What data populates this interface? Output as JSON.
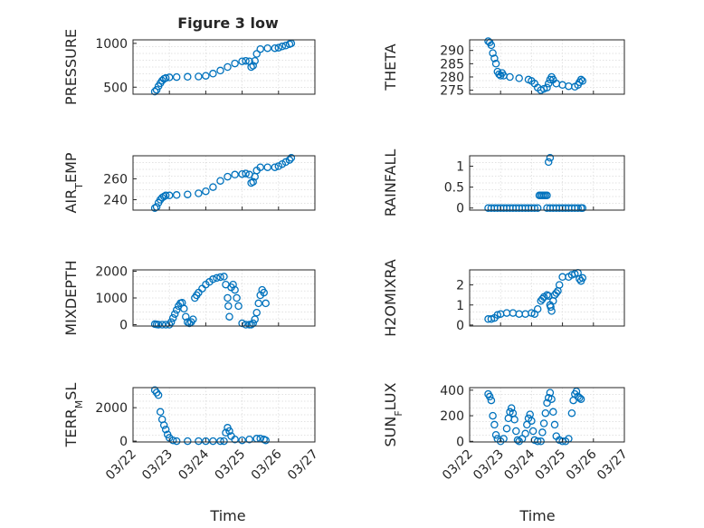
{
  "chart_data": [
    {
      "type": "scatter",
      "title": "Figure 3 low",
      "ylabel": "PRESSURE",
      "ylim": [
        420,
        1040
      ],
      "yticks": [
        {
          "v": 500,
          "t": "500"
        },
        {
          "v": 1000,
          "t": "1000"
        }
      ],
      "xlim": [
        0,
        5
      ],
      "points": [
        [
          0.6,
          450
        ],
        [
          0.65,
          470
        ],
        [
          0.7,
          510
        ],
        [
          0.75,
          545
        ],
        [
          0.8,
          575
        ],
        [
          0.85,
          595
        ],
        [
          0.9,
          605
        ],
        [
          1.0,
          612
        ],
        [
          1.2,
          615
        ],
        [
          1.5,
          618
        ],
        [
          1.8,
          622
        ],
        [
          2.0,
          630
        ],
        [
          2.2,
          655
        ],
        [
          2.4,
          690
        ],
        [
          2.6,
          730
        ],
        [
          2.8,
          770
        ],
        [
          3.0,
          795
        ],
        [
          3.1,
          800
        ],
        [
          3.2,
          795
        ],
        [
          3.25,
          730
        ],
        [
          3.3,
          745
        ],
        [
          3.35,
          800
        ],
        [
          3.4,
          880
        ],
        [
          3.5,
          935
        ],
        [
          3.7,
          945
        ],
        [
          3.9,
          945
        ],
        [
          4.0,
          950
        ],
        [
          4.1,
          965
        ],
        [
          4.2,
          975
        ],
        [
          4.3,
          990
        ],
        [
          4.35,
          1000
        ]
      ]
    },
    {
      "type": "scatter",
      "title": "",
      "ylabel": "THETA",
      "ylim": [
        273.5,
        294
      ],
      "yticks": [
        {
          "v": 275,
          "t": "275"
        },
        {
          "v": 280,
          "t": "280"
        },
        {
          "v": 285,
          "t": "285"
        },
        {
          "v": 290,
          "t": "290"
        }
      ],
      "xlim": [
        0,
        5
      ],
      "points": [
        [
          0.6,
          293.5
        ],
        [
          0.65,
          293
        ],
        [
          0.7,
          292
        ],
        [
          0.75,
          289
        ],
        [
          0.8,
          287
        ],
        [
          0.85,
          285
        ],
        [
          0.9,
          282
        ],
        [
          0.95,
          281
        ],
        [
          1.0,
          280.5
        ],
        [
          1.05,
          281.5
        ],
        [
          1.1,
          280.5
        ],
        [
          1.3,
          280
        ],
        [
          1.6,
          279.5
        ],
        [
          1.9,
          279
        ],
        [
          2.0,
          278.5
        ],
        [
          2.1,
          277.5
        ],
        [
          2.2,
          276
        ],
        [
          2.3,
          275
        ],
        [
          2.4,
          275.5
        ],
        [
          2.5,
          276
        ],
        [
          2.55,
          277.5
        ],
        [
          2.6,
          279
        ],
        [
          2.65,
          280
        ],
        [
          2.7,
          279
        ],
        [
          2.8,
          277.5
        ],
        [
          3.0,
          277
        ],
        [
          3.2,
          276.5
        ],
        [
          3.4,
          276.3
        ],
        [
          3.5,
          277
        ],
        [
          3.55,
          278
        ],
        [
          3.6,
          279
        ],
        [
          3.65,
          278.5
        ]
      ]
    },
    {
      "type": "scatter",
      "title": "",
      "ylabel": "AIR_TEMP",
      "ylim": [
        230,
        282
      ],
      "yticks": [
        {
          "v": 240,
          "t": "240"
        },
        {
          "v": 260,
          "t": "260"
        }
      ],
      "xlim": [
        0,
        5
      ],
      "points": [
        [
          0.6,
          232
        ],
        [
          0.65,
          233
        ],
        [
          0.7,
          237
        ],
        [
          0.75,
          240
        ],
        [
          0.8,
          242
        ],
        [
          0.85,
          243
        ],
        [
          0.9,
          244
        ],
        [
          1.0,
          244
        ],
        [
          1.2,
          244.5
        ],
        [
          1.5,
          245
        ],
        [
          1.8,
          246
        ],
        [
          2.0,
          248
        ],
        [
          2.2,
          252
        ],
        [
          2.4,
          258
        ],
        [
          2.6,
          262
        ],
        [
          2.8,
          264
        ],
        [
          3.0,
          264.5
        ],
        [
          3.1,
          265
        ],
        [
          3.2,
          264
        ],
        [
          3.25,
          256
        ],
        [
          3.3,
          257
        ],
        [
          3.35,
          262
        ],
        [
          3.4,
          268
        ],
        [
          3.5,
          271
        ],
        [
          3.7,
          271
        ],
        [
          3.9,
          271
        ],
        [
          4.0,
          272
        ],
        [
          4.1,
          274
        ],
        [
          4.2,
          276
        ],
        [
          4.3,
          278
        ],
        [
          4.35,
          280
        ]
      ]
    },
    {
      "type": "scatter",
      "title": "",
      "ylabel": "RAINFALL",
      "ylim": [
        -0.05,
        1.25
      ],
      "yticks": [
        {
          "v": 0,
          "t": "0"
        },
        {
          "v": 0.5,
          "t": "0.5"
        },
        {
          "v": 1,
          "t": "1"
        }
      ],
      "xlim": [
        0,
        5
      ],
      "points": [
        [
          0.6,
          0
        ],
        [
          0.7,
          0
        ],
        [
          0.8,
          0
        ],
        [
          0.9,
          0
        ],
        [
          1.0,
          0
        ],
        [
          1.1,
          0
        ],
        [
          1.2,
          0
        ],
        [
          1.3,
          0
        ],
        [
          1.4,
          0
        ],
        [
          1.5,
          0
        ],
        [
          1.6,
          0
        ],
        [
          1.7,
          0
        ],
        [
          1.8,
          0
        ],
        [
          1.9,
          0
        ],
        [
          2.0,
          0
        ],
        [
          2.1,
          0
        ],
        [
          2.2,
          0
        ],
        [
          2.25,
          0.3
        ],
        [
          2.3,
          0.3
        ],
        [
          2.35,
          0.3
        ],
        [
          2.4,
          0.3
        ],
        [
          2.45,
          0.3
        ],
        [
          2.5,
          0.3
        ],
        [
          2.55,
          1.1
        ],
        [
          2.6,
          1.2
        ],
        [
          2.5,
          0
        ],
        [
          2.6,
          0
        ],
        [
          2.7,
          0
        ],
        [
          2.8,
          0
        ],
        [
          2.9,
          0
        ],
        [
          3.0,
          0
        ],
        [
          3.1,
          0
        ],
        [
          3.2,
          0
        ],
        [
          3.3,
          0
        ],
        [
          3.4,
          0
        ],
        [
          3.5,
          0
        ],
        [
          3.6,
          0
        ],
        [
          3.65,
          0
        ]
      ]
    },
    {
      "type": "scatter",
      "title": "",
      "ylabel": "MIXDEPTH",
      "ylim": [
        -50,
        2050
      ],
      "yticks": [
        {
          "v": 0,
          "t": "0"
        },
        {
          "v": 1000,
          "t": "1000"
        },
        {
          "v": 2000,
          "t": "2000"
        }
      ],
      "xlim": [
        0,
        5
      ],
      "points": [
        [
          0.6,
          20
        ],
        [
          0.65,
          10
        ],
        [
          0.7,
          0
        ],
        [
          0.8,
          0
        ],
        [
          0.9,
          0
        ],
        [
          1.0,
          0
        ],
        [
          1.05,
          100
        ],
        [
          1.1,
          250
        ],
        [
          1.15,
          400
        ],
        [
          1.2,
          550
        ],
        [
          1.25,
          700
        ],
        [
          1.3,
          800
        ],
        [
          1.35,
          820
        ],
        [
          1.4,
          600
        ],
        [
          1.45,
          300
        ],
        [
          1.5,
          100
        ],
        [
          1.55,
          50
        ],
        [
          1.6,
          100
        ],
        [
          1.65,
          200
        ],
        [
          1.7,
          1000
        ],
        [
          1.75,
          1100
        ],
        [
          1.8,
          1200
        ],
        [
          1.9,
          1350
        ],
        [
          2.0,
          1500
        ],
        [
          2.1,
          1600
        ],
        [
          2.2,
          1700
        ],
        [
          2.3,
          1750
        ],
        [
          2.4,
          1780
        ],
        [
          2.5,
          1800
        ],
        [
          2.55,
          1500
        ],
        [
          2.6,
          1000
        ],
        [
          2.62,
          700
        ],
        [
          2.65,
          300
        ],
        [
          2.7,
          1400
        ],
        [
          2.75,
          1500
        ],
        [
          2.8,
          1300
        ],
        [
          2.85,
          1000
        ],
        [
          2.9,
          700
        ],
        [
          3.0,
          50
        ],
        [
          3.1,
          0
        ],
        [
          3.2,
          0
        ],
        [
          3.25,
          0
        ],
        [
          3.3,
          50
        ],
        [
          3.35,
          200
        ],
        [
          3.4,
          450
        ],
        [
          3.45,
          800
        ],
        [
          3.5,
          1100
        ],
        [
          3.55,
          1300
        ],
        [
          3.6,
          1200
        ],
        [
          3.65,
          800
        ]
      ]
    },
    {
      "type": "scatter",
      "title": "",
      "ylabel": "H2OMIXRA",
      "ylim": [
        -0.05,
        2.75
      ],
      "yticks": [
        {
          "v": 0,
          "t": "0"
        },
        {
          "v": 1,
          "t": "1"
        },
        {
          "v": 2,
          "t": "2"
        }
      ],
      "xlim": [
        0,
        5
      ],
      "points": [
        [
          0.6,
          0.3
        ],
        [
          0.7,
          0.3
        ],
        [
          0.8,
          0.35
        ],
        [
          0.9,
          0.5
        ],
        [
          1.0,
          0.55
        ],
        [
          1.2,
          0.6
        ],
        [
          1.4,
          0.6
        ],
        [
          1.6,
          0.55
        ],
        [
          1.8,
          0.55
        ],
        [
          2.0,
          0.6
        ],
        [
          2.1,
          0.55
        ],
        [
          2.2,
          0.8
        ],
        [
          2.3,
          1.2
        ],
        [
          2.35,
          1.3
        ],
        [
          2.4,
          1.4
        ],
        [
          2.5,
          1.5
        ],
        [
          2.55,
          1.45
        ],
        [
          2.6,
          1.0
        ],
        [
          2.62,
          0.9
        ],
        [
          2.65,
          0.7
        ],
        [
          2.7,
          1.2
        ],
        [
          2.75,
          1.5
        ],
        [
          2.8,
          1.6
        ],
        [
          2.85,
          1.7
        ],
        [
          2.9,
          2.0
        ],
        [
          3.0,
          2.4
        ],
        [
          3.2,
          2.4
        ],
        [
          3.3,
          2.5
        ],
        [
          3.4,
          2.55
        ],
        [
          3.5,
          2.6
        ],
        [
          3.55,
          2.3
        ],
        [
          3.6,
          2.2
        ],
        [
          3.65,
          2.35
        ]
      ]
    },
    {
      "type": "scatter",
      "title": "",
      "ylabel": "TERR_MSL",
      "ylim": [
        -50,
        3200
      ],
      "yticks": [
        {
          "v": 0,
          "t": "0"
        },
        {
          "v": 2000,
          "t": "2000"
        }
      ],
      "xlim": [
        0,
        5
      ],
      "points": [
        [
          0.6,
          3050
        ],
        [
          0.65,
          2900
        ],
        [
          0.7,
          2750
        ],
        [
          0.75,
          1750
        ],
        [
          0.8,
          1300
        ],
        [
          0.85,
          950
        ],
        [
          0.9,
          700
        ],
        [
          0.95,
          400
        ],
        [
          1.0,
          200
        ],
        [
          1.1,
          50
        ],
        [
          1.2,
          0
        ],
        [
          1.5,
          0
        ],
        [
          1.8,
          0
        ],
        [
          2.0,
          0
        ],
        [
          2.2,
          0
        ],
        [
          2.4,
          0
        ],
        [
          2.5,
          0
        ],
        [
          2.55,
          500
        ],
        [
          2.6,
          800
        ],
        [
          2.65,
          600
        ],
        [
          2.7,
          300
        ],
        [
          2.8,
          100
        ],
        [
          3.0,
          50
        ],
        [
          3.2,
          100
        ],
        [
          3.4,
          150
        ],
        [
          3.5,
          150
        ],
        [
          3.6,
          100
        ],
        [
          3.65,
          50
        ]
      ]
    },
    {
      "type": "scatter",
      "title": "",
      "ylabel": "SUN_FLUX",
      "ylim": [
        -5,
        420
      ],
      "yticks": [
        {
          "v": 0,
          "t": "0"
        },
        {
          "v": 200,
          "t": "200"
        },
        {
          "v": 400,
          "t": "400"
        }
      ],
      "xlim": [
        0,
        5
      ],
      "points": [
        [
          0.6,
          370
        ],
        [
          0.65,
          350
        ],
        [
          0.7,
          320
        ],
        [
          0.75,
          200
        ],
        [
          0.8,
          130
        ],
        [
          0.85,
          50
        ],
        [
          0.9,
          20
        ],
        [
          1.0,
          0
        ],
        [
          1.1,
          20
        ],
        [
          1.2,
          100
        ],
        [
          1.25,
          180
        ],
        [
          1.3,
          230
        ],
        [
          1.35,
          260
        ],
        [
          1.4,
          220
        ],
        [
          1.45,
          170
        ],
        [
          1.5,
          80
        ],
        [
          1.55,
          10
        ],
        [
          1.6,
          0
        ],
        [
          1.7,
          20
        ],
        [
          1.8,
          60
        ],
        [
          1.85,
          130
        ],
        [
          1.9,
          180
        ],
        [
          1.95,
          210
        ],
        [
          2.0,
          160
        ],
        [
          2.05,
          80
        ],
        [
          2.1,
          10
        ],
        [
          2.2,
          0
        ],
        [
          2.3,
          0
        ],
        [
          2.35,
          70
        ],
        [
          2.4,
          140
        ],
        [
          2.45,
          220
        ],
        [
          2.5,
          300
        ],
        [
          2.55,
          340
        ],
        [
          2.6,
          380
        ],
        [
          2.65,
          330
        ],
        [
          2.7,
          230
        ],
        [
          2.75,
          130
        ],
        [
          2.8,
          40
        ],
        [
          2.9,
          10
        ],
        [
          3.0,
          0
        ],
        [
          3.1,
          0
        ],
        [
          3.2,
          20
        ],
        [
          3.3,
          220
        ],
        [
          3.35,
          320
        ],
        [
          3.4,
          370
        ],
        [
          3.45,
          390
        ],
        [
          3.5,
          350
        ],
        [
          3.55,
          340
        ],
        [
          3.6,
          330
        ]
      ]
    }
  ],
  "x_tick_labels": [
    "03/22",
    "03/23",
    "03/24",
    "03/25",
    "03/26",
    "03/27"
  ],
  "xlabel_left": "Time",
  "xlabel_right": "Time"
}
